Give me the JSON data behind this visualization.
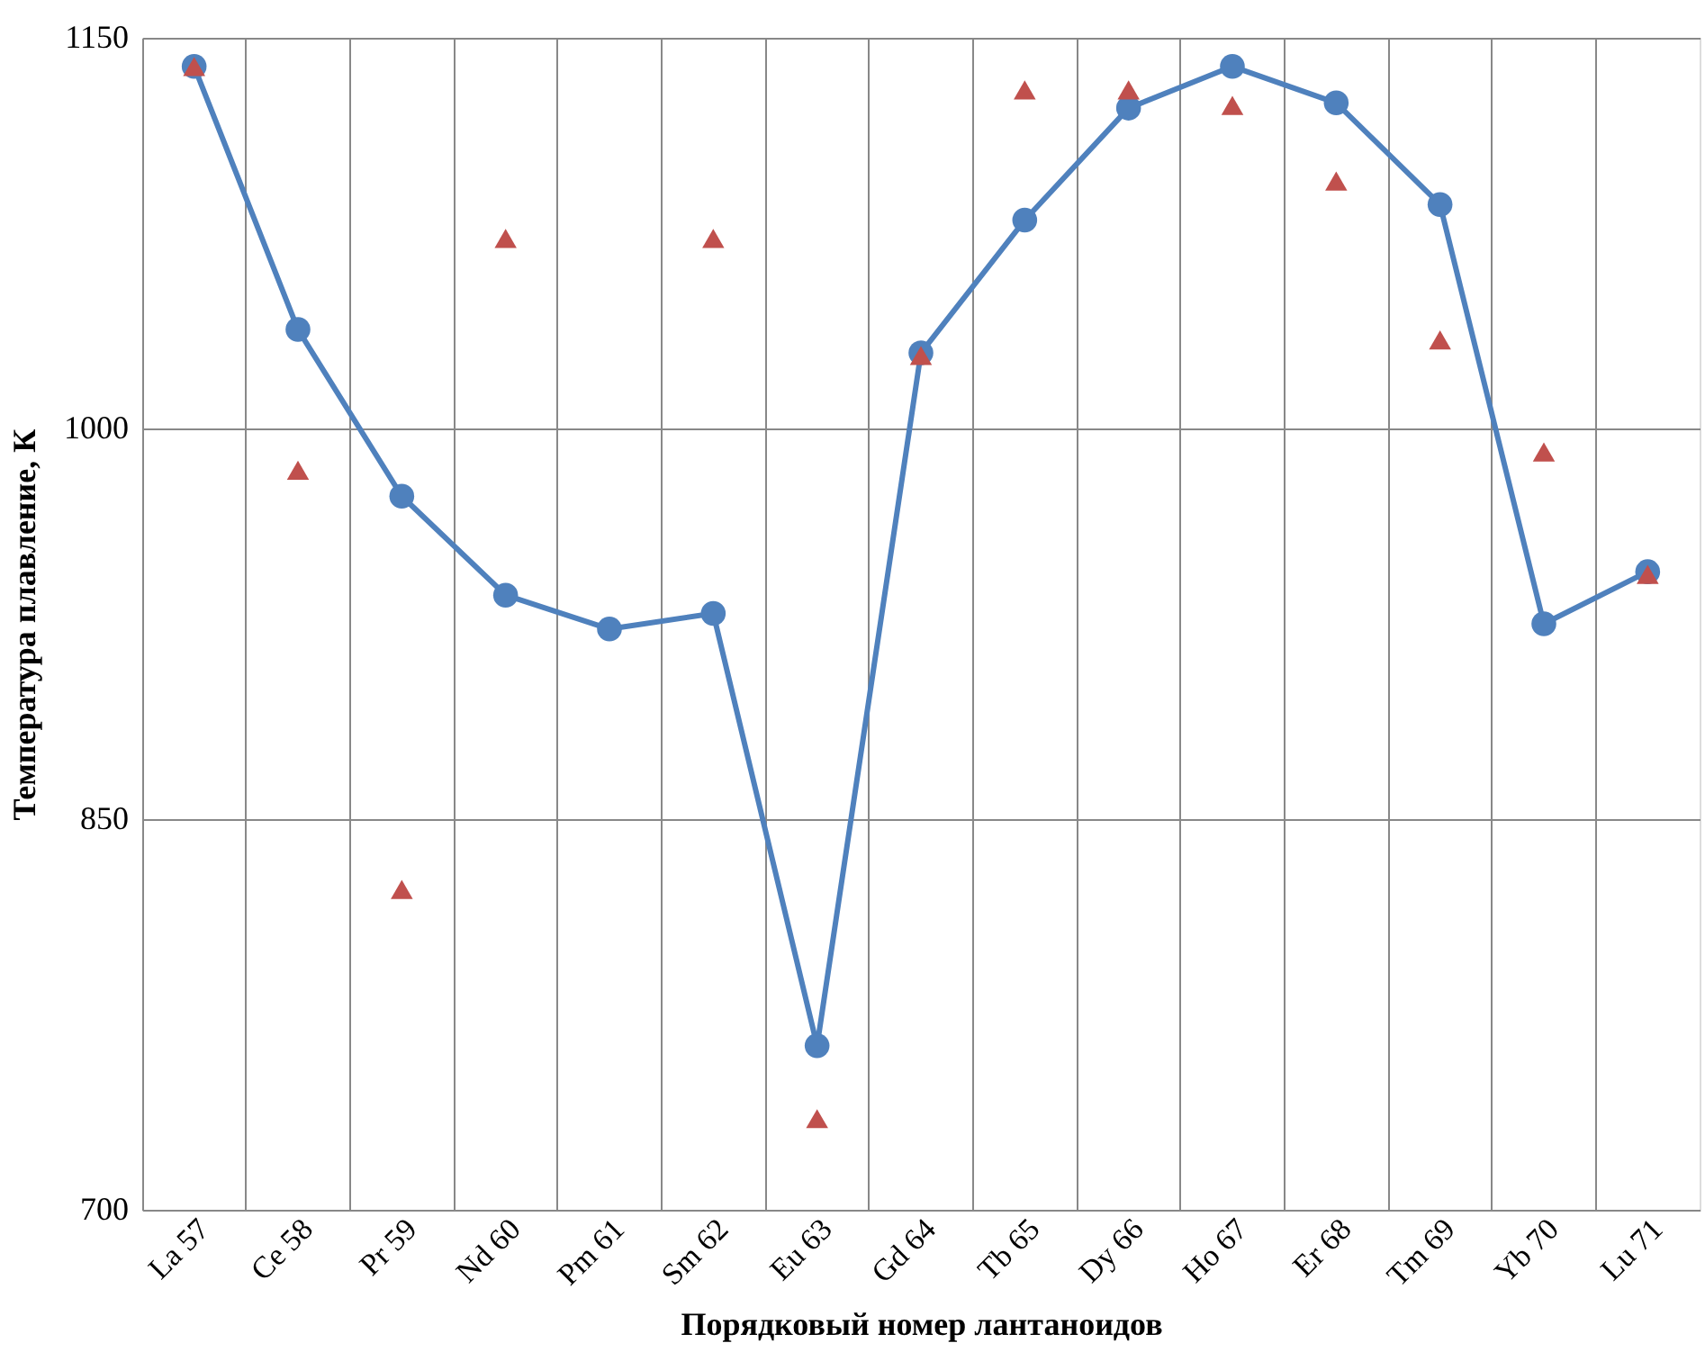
{
  "chart_data": {
    "type": "line",
    "xlabel": "Порядковый номер лантаноидов",
    "ylabel": "Температура плавление, К",
    "categories": [
      "La 57",
      "Ce 58",
      "Pr 59",
      "Nd 60",
      "Pm 61",
      "Sm 62",
      "Eu 63",
      "Gd 64",
      "Tb 65",
      "Dy 66",
      "Ho 67",
      "Er 68",
      "Tm 69",
      "Yb 70",
      "Lu 71"
    ],
    "series": [
      {
        "marker": "circle",
        "color": "#4f81bd",
        "values": [
          1139,
          1038,
          974,
          936,
          923,
          929,
          763,
          1029,
          1080,
          1123,
          1139,
          1125,
          1086,
          925,
          945
        ]
      },
      {
        "type": "scatter",
        "marker": "triangle",
        "color": "#c0504d",
        "values": [
          1139,
          984,
          823,
          1073,
          null,
          1073,
          735,
          1028,
          1130,
          1130,
          1124,
          1095,
          1034,
          991,
          944
        ]
      }
    ],
    "ylim": [
      700,
      1150
    ],
    "yticks": [
      700,
      850,
      1000,
      1150
    ],
    "grid": true
  }
}
